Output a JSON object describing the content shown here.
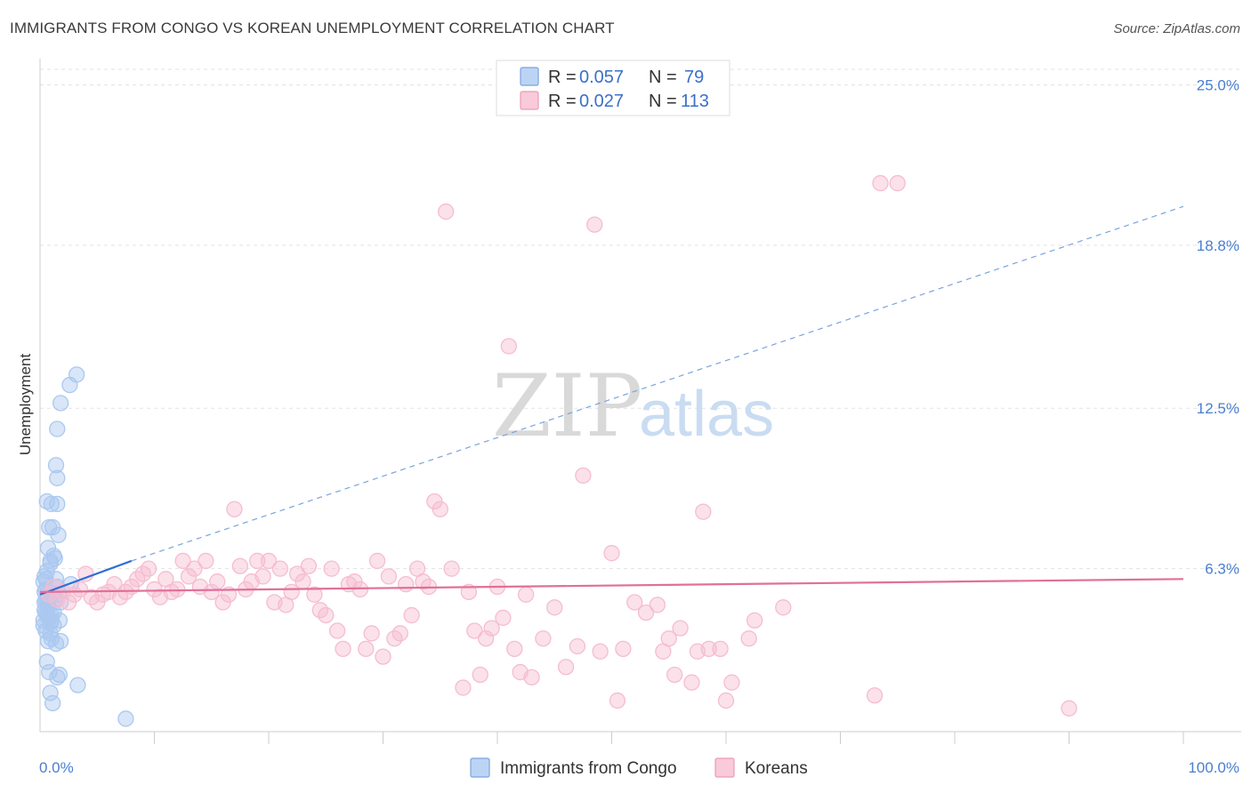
{
  "title": "IMMIGRANTS FROM CONGO VS KOREAN UNEMPLOYMENT CORRELATION CHART",
  "source": "Source: ZipAtlas.com",
  "watermark": {
    "zip": "ZIP",
    "atlas": "atlas"
  },
  "legend": {
    "r_label": "R =",
    "n_label": "N =",
    "series": [
      {
        "r": "0.057",
        "n": "79"
      },
      {
        "r": "0.027",
        "n": "113"
      }
    ]
  },
  "chart_data": {
    "type": "scatter",
    "title": "IMMIGRANTS FROM CONGO VS KOREAN UNEMPLOYMENT CORRELATION CHART",
    "xlabel": "",
    "ylabel": "Unemployment",
    "xlim": [
      0,
      100
    ],
    "ylim": [
      0,
      25.6
    ],
    "x_tick_labels": [
      "0.0%",
      "100.0%"
    ],
    "y_ticks": [
      6.3,
      12.5,
      18.8,
      25.0
    ],
    "y_tick_labels": [
      "6.3%",
      "12.5%",
      "18.8%",
      "25.0%"
    ],
    "grid": true,
    "legend_position": "top-center",
    "series": [
      {
        "name": "Immigrants from Congo",
        "color": "#5b8fd9",
        "fill": "#aac8f0",
        "trend": {
          "x0": 0.0,
          "y0": 5.3,
          "x1": 8.0,
          "y1": 6.6,
          "dashed_to": [
            100.0,
            20.3
          ]
        },
        "points": [
          [
            0.3,
            5.8
          ],
          [
            0.5,
            5.5
          ],
          [
            0.6,
            5.2
          ],
          [
            0.4,
            5.0
          ],
          [
            0.7,
            4.8
          ],
          [
            0.5,
            4.6
          ],
          [
            0.8,
            4.4
          ],
          [
            0.3,
            4.3
          ],
          [
            1.0,
            4.5
          ],
          [
            0.6,
            6.2
          ],
          [
            0.9,
            6.5
          ],
          [
            1.2,
            6.8
          ],
          [
            0.7,
            7.1
          ],
          [
            0.8,
            7.9
          ],
          [
            1.0,
            8.8
          ],
          [
            0.6,
            8.9
          ],
          [
            1.5,
            8.8
          ],
          [
            1.1,
            7.9
          ],
          [
            1.6,
            7.6
          ],
          [
            1.3,
            6.7
          ],
          [
            0.9,
            6.6
          ],
          [
            1.4,
            5.9
          ],
          [
            0.4,
            6.0
          ],
          [
            0.5,
            5.9
          ],
          [
            1.7,
            4.3
          ],
          [
            1.2,
            4.1
          ],
          [
            1.4,
            3.4
          ],
          [
            1.8,
            3.5
          ],
          [
            0.7,
            3.5
          ],
          [
            1.0,
            3.6
          ],
          [
            0.6,
            2.7
          ],
          [
            0.8,
            2.3
          ],
          [
            1.5,
            2.1
          ],
          [
            1.7,
            2.2
          ],
          [
            0.9,
            1.5
          ],
          [
            1.1,
            1.1
          ],
          [
            3.3,
            1.8
          ],
          [
            7.5,
            0.5
          ],
          [
            2.6,
            13.4
          ],
          [
            3.2,
            13.8
          ],
          [
            1.8,
            12.7
          ],
          [
            1.5,
            11.7
          ],
          [
            1.4,
            10.3
          ],
          [
            1.5,
            9.8
          ],
          [
            0.5,
            5.1
          ],
          [
            0.7,
            4.9
          ],
          [
            0.4,
            4.7
          ],
          [
            0.6,
            4.5
          ],
          [
            0.8,
            4.4
          ],
          [
            1.0,
            4.3
          ],
          [
            0.3,
            4.1
          ],
          [
            0.5,
            3.9
          ],
          [
            0.9,
            3.8
          ],
          [
            1.2,
            4.6
          ],
          [
            1.5,
            5.6
          ],
          [
            2.7,
            5.7
          ],
          [
            1.6,
            5.3
          ],
          [
            1.3,
            5.1
          ],
          [
            1.8,
            5.0
          ],
          [
            0.4,
            5.4
          ],
          [
            0.6,
            5.3
          ],
          [
            0.8,
            5.2
          ],
          [
            0.9,
            4.2
          ]
        ]
      },
      {
        "name": "Koreans",
        "color": "#e07aa0",
        "fill": "#f6bcd0",
        "trend": {
          "x0": 0.0,
          "y0": 5.4,
          "x1": 100.0,
          "y1": 5.9
        },
        "points": [
          [
            0.8,
            5.3
          ],
          [
            1.2,
            5.6
          ],
          [
            1.5,
            5.1
          ],
          [
            2.0,
            5.4
          ],
          [
            2.5,
            5.0
          ],
          [
            3.0,
            5.3
          ],
          [
            3.5,
            5.5
          ],
          [
            4.0,
            6.1
          ],
          [
            4.5,
            5.2
          ],
          [
            5.0,
            5.0
          ],
          [
            5.5,
            5.3
          ],
          [
            6.0,
            5.4
          ],
          [
            6.5,
            5.7
          ],
          [
            7.0,
            5.2
          ],
          [
            7.5,
            5.4
          ],
          [
            8.0,
            5.6
          ],
          [
            8.5,
            5.9
          ],
          [
            9.0,
            6.1
          ],
          [
            9.5,
            6.3
          ],
          [
            10.0,
            5.5
          ],
          [
            10.5,
            5.2
          ],
          [
            11.0,
            5.9
          ],
          [
            11.5,
            5.4
          ],
          [
            12.0,
            5.5
          ],
          [
            12.5,
            6.6
          ],
          [
            13.0,
            6.0
          ],
          [
            13.5,
            6.3
          ],
          [
            14.0,
            5.6
          ],
          [
            14.5,
            6.6
          ],
          [
            15.0,
            5.4
          ],
          [
            15.5,
            5.8
          ],
          [
            16.0,
            5.0
          ],
          [
            16.5,
            5.3
          ],
          [
            17.0,
            8.6
          ],
          [
            17.5,
            6.4
          ],
          [
            18.0,
            5.5
          ],
          [
            18.5,
            5.8
          ],
          [
            19.0,
            6.6
          ],
          [
            19.5,
            6.0
          ],
          [
            20.0,
            6.6
          ],
          [
            20.5,
            5.0
          ],
          [
            21.0,
            6.3
          ],
          [
            21.5,
            4.9
          ],
          [
            22.0,
            5.4
          ],
          [
            22.5,
            6.1
          ],
          [
            23.0,
            5.8
          ],
          [
            23.5,
            6.4
          ],
          [
            24.0,
            5.3
          ],
          [
            24.5,
            4.7
          ],
          [
            25.0,
            4.5
          ],
          [
            25.5,
            6.3
          ],
          [
            26.0,
            3.9
          ],
          [
            26.5,
            3.2
          ],
          [
            27.0,
            5.7
          ],
          [
            27.5,
            5.8
          ],
          [
            28.0,
            5.5
          ],
          [
            28.5,
            3.2
          ],
          [
            29.0,
            3.8
          ],
          [
            29.5,
            6.6
          ],
          [
            30.0,
            2.9
          ],
          [
            30.5,
            6.0
          ],
          [
            31.0,
            3.6
          ],
          [
            31.5,
            3.8
          ],
          [
            32.0,
            5.7
          ],
          [
            32.5,
            4.5
          ],
          [
            33.0,
            6.3
          ],
          [
            33.5,
            5.8
          ],
          [
            34.0,
            5.6
          ],
          [
            34.5,
            8.9
          ],
          [
            35.0,
            8.6
          ],
          [
            35.5,
            20.1
          ],
          [
            36.0,
            6.3
          ],
          [
            37.0,
            1.7
          ],
          [
            37.5,
            5.4
          ],
          [
            38.0,
            3.9
          ],
          [
            38.5,
            2.2
          ],
          [
            39.0,
            3.6
          ],
          [
            39.5,
            4.0
          ],
          [
            40.0,
            5.6
          ],
          [
            40.5,
            4.4
          ],
          [
            41.0,
            14.9
          ],
          [
            41.5,
            3.2
          ],
          [
            42.0,
            2.3
          ],
          [
            42.5,
            5.3
          ],
          [
            43.0,
            2.1
          ],
          [
            44.0,
            3.6
          ],
          [
            45.0,
            4.8
          ],
          [
            46.0,
            2.5
          ],
          [
            47.0,
            3.3
          ],
          [
            47.5,
            9.9
          ],
          [
            48.5,
            19.6
          ],
          [
            49.0,
            3.1
          ],
          [
            50.0,
            6.9
          ],
          [
            50.5,
            1.2
          ],
          [
            51.0,
            3.2
          ],
          [
            52.0,
            5.0
          ],
          [
            53.0,
            4.6
          ],
          [
            54.0,
            4.9
          ],
          [
            54.5,
            3.1
          ],
          [
            55.0,
            3.6
          ],
          [
            55.5,
            2.2
          ],
          [
            56.0,
            4.0
          ],
          [
            57.0,
            1.9
          ],
          [
            57.5,
            3.1
          ],
          [
            58.0,
            8.5
          ],
          [
            58.5,
            3.2
          ],
          [
            59.5,
            3.2
          ],
          [
            60.0,
            1.2
          ],
          [
            60.5,
            1.9
          ],
          [
            62.0,
            3.6
          ],
          [
            62.5,
            4.3
          ],
          [
            65.0,
            4.8
          ],
          [
            73.0,
            1.4
          ],
          [
            73.5,
            21.2
          ],
          [
            75.0,
            21.2
          ],
          [
            90.0,
            0.9
          ]
        ]
      }
    ]
  }
}
